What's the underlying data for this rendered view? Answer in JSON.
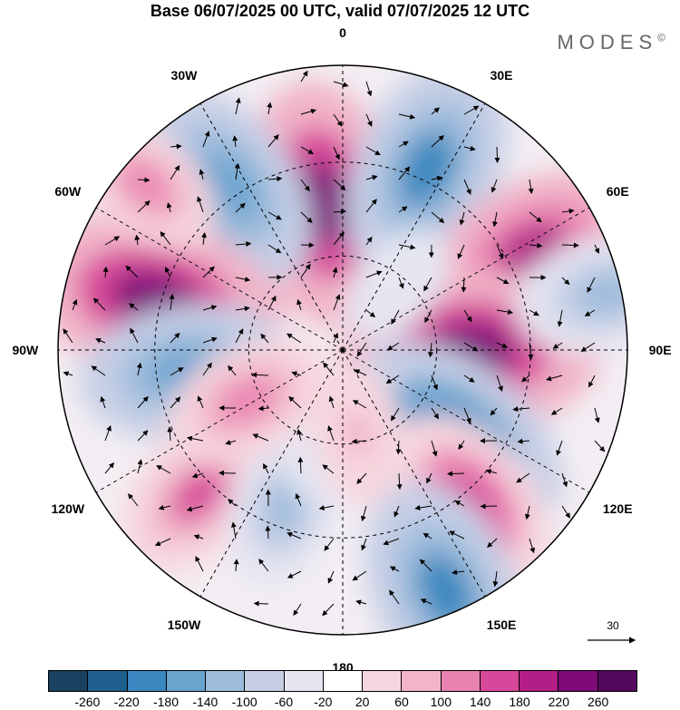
{
  "title": "Base 06/07/2025 00 UTC, valid 07/07/2025 12 UTC",
  "brand": "MODES",
  "brand_mark": "©",
  "map": {
    "projection": "polar-stereographic-south",
    "longitude_labels": [
      {
        "text": "0",
        "lon": 0
      },
      {
        "text": "30E",
        "lon": 30
      },
      {
        "text": "60E",
        "lon": 60
      },
      {
        "text": "90E",
        "lon": 90
      },
      {
        "text": "120E",
        "lon": 120
      },
      {
        "text": "150E",
        "lon": 150
      },
      {
        "text": "180",
        "lon": 180
      },
      {
        "text": "150W",
        "lon": -150
      },
      {
        "text": "120W",
        "lon": -120
      },
      {
        "text": "90W",
        "lon": -90
      },
      {
        "text": "60W",
        "lon": -60
      },
      {
        "text": "30W",
        "lon": -30
      }
    ],
    "reference_vector": "30",
    "anomaly_centers": [
      {
        "lon": -8,
        "lat_frac": 0.52,
        "level": 220
      },
      {
        "lon": 25,
        "lat_frac": 0.7,
        "level": -200
      },
      {
        "lon": -35,
        "lat_frac": 0.7,
        "level": -180
      },
      {
        "lon": 62,
        "lat_frac": 0.75,
        "level": 180
      },
      {
        "lon": 90,
        "lat_frac": 0.45,
        "level": 240
      },
      {
        "lon": 78,
        "lat_frac": 0.95,
        "level": -140
      },
      {
        "lon": -75,
        "lat_frac": 0.68,
        "level": 240
      },
      {
        "lon": -98,
        "lat_frac": 0.55,
        "level": -180
      },
      {
        "lon": 128,
        "lat_frac": 0.5,
        "level": -220
      },
      {
        "lon": 140,
        "lat_frac": 0.7,
        "level": 160
      },
      {
        "lon": 157,
        "lat_frac": 0.92,
        "level": -200
      },
      {
        "lon": -135,
        "lat_frac": 0.72,
        "level": 140
      },
      {
        "lon": -160,
        "lat_frac": 0.58,
        "level": -120
      },
      {
        "lon": -170,
        "lat_frac": 0.3,
        "level": -80
      },
      {
        "lon": 170,
        "lat_frac": 0.3,
        "level": 80
      },
      {
        "lon": -118,
        "lat_frac": 0.38,
        "level": 120
      },
      {
        "lon": -50,
        "lat_frac": 0.9,
        "level": 100
      },
      {
        "lon": 40,
        "lat_frac": 0.3,
        "level": -60
      }
    ]
  },
  "colorbar": {
    "colors": [
      "#18425f",
      "#1f5f8d",
      "#3a88bf",
      "#6aa4cf",
      "#9dbcdc",
      "#c6cfe5",
      "#e5e6f1",
      "#ffffff",
      "#f7d7df",
      "#f1b4c8",
      "#ea82b1",
      "#d8489a",
      "#b31d86",
      "#7e0a78",
      "#54095f"
    ],
    "tick_labels": [
      "-260",
      "-220",
      "-180",
      "-140",
      "-100",
      "-60",
      "-20",
      "20",
      "60",
      "100",
      "140",
      "180",
      "220",
      "260"
    ]
  }
}
